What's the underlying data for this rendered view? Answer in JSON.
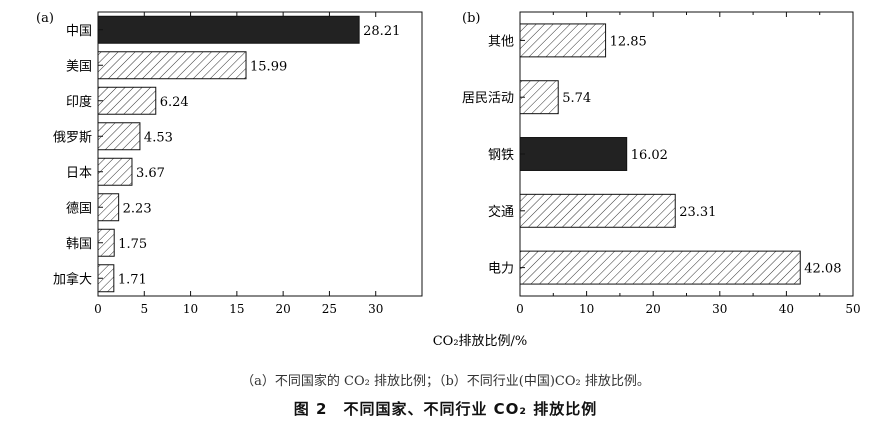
{
  "chart_data": [
    {
      "type": "bar",
      "orientation": "horizontal",
      "panel_label": "(a)",
      "categories": [
        "中国",
        "美国",
        "印度",
        "俄罗斯",
        "日本",
        "德国",
        "韩国",
        "加拿大"
      ],
      "values": [
        28.21,
        15.99,
        6.24,
        4.53,
        3.67,
        2.23,
        1.75,
        1.71
      ],
      "value_labels": [
        "28.21",
        "15.99",
        "6.24",
        "4.53",
        "3.67",
        "2.23",
        "1.75",
        "1.71"
      ],
      "highlight": "中国",
      "xlim": [
        0,
        35
      ],
      "xticks": [
        0,
        5,
        10,
        15,
        20,
        25,
        30
      ]
    },
    {
      "type": "bar",
      "orientation": "horizontal",
      "panel_label": "(b)",
      "categories": [
        "其他",
        "居民活动",
        "钢铁",
        "交通",
        "电力"
      ],
      "values": [
        12.85,
        5.74,
        16.02,
        23.31,
        42.08
      ],
      "value_labels": [
        "12.85",
        "5.74",
        "16.02",
        "23.31",
        "42.08"
      ],
      "highlight": "钢铁",
      "xlim": [
        0,
        50
      ],
      "xticks": [
        0,
        10,
        20,
        30,
        40,
        50
      ]
    }
  ],
  "xlabel": "CO₂排放比例/%",
  "caption_sub": "（a）不同国家的 CO₂ 排放比例；（b）不同行业(中国)CO₂ 排放比例。",
  "caption_main": "图 2　不同国家、不同行业 CO₂ 排放比例",
  "colors": {
    "highlight_fill": "#222222",
    "hatch": "#333333",
    "axis": "#111111"
  }
}
